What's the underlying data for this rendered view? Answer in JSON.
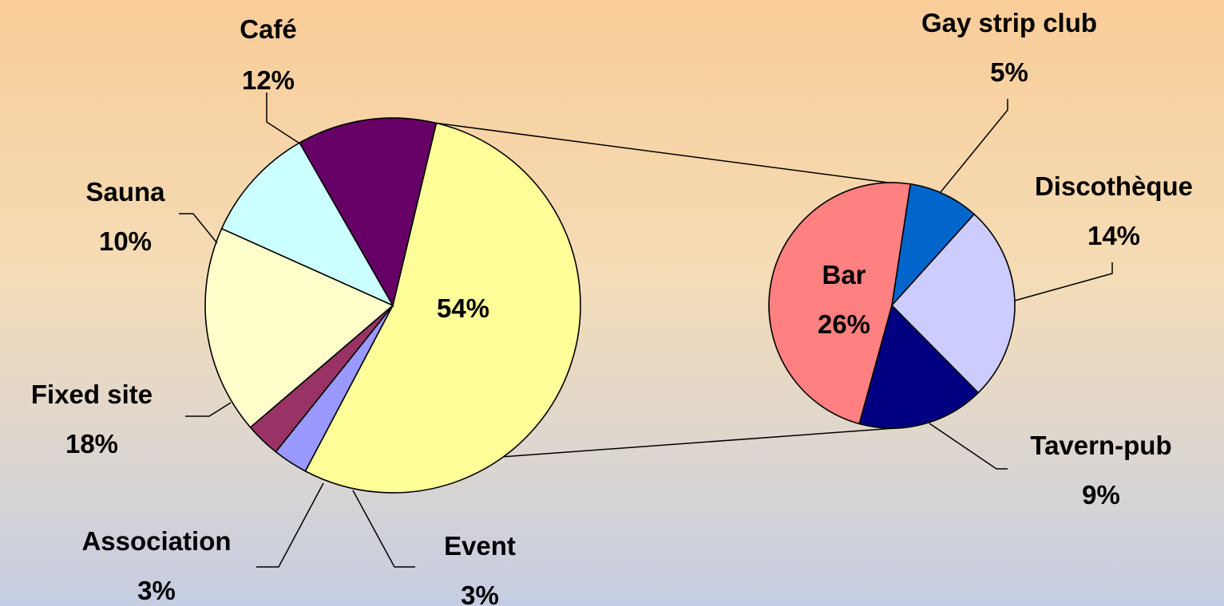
{
  "chart_data": {
    "type": "pie",
    "subtype": "bar-of-pie",
    "main_pie": {
      "slices": [
        {
          "label": "Bar, Gay strip club, Discothèque, Tavern-pub",
          "display_label": "",
          "value": 54,
          "display": "54%",
          "color": "#ffff99"
        },
        {
          "label": "Event",
          "value": 3,
          "display": "3%",
          "color": "#9999ff"
        },
        {
          "label": "Association",
          "value": 3,
          "display": "3%",
          "color": "#993366"
        },
        {
          "label": "Fixed site",
          "value": 18,
          "display": "18%",
          "color": "#ffffcc"
        },
        {
          "label": "Sauna",
          "value": 10,
          "display": "10%",
          "color": "#ccffff"
        },
        {
          "label": "Café",
          "value": 12,
          "display": "12%",
          "color": "#660066"
        }
      ]
    },
    "secondary_pie": {
      "slices": [
        {
          "label": "Gay strip club",
          "value": 5,
          "display": "5%",
          "color": "#0066cc"
        },
        {
          "label": "Discothèque",
          "value": 14,
          "display": "14%",
          "color": "#ccccff"
        },
        {
          "label": "Tavern-pub",
          "value": 9,
          "display": "9%",
          "color": "#000080"
        },
        {
          "label": "Bar",
          "value": 26,
          "display": "26%",
          "color": "#ff8080"
        }
      ]
    }
  }
}
